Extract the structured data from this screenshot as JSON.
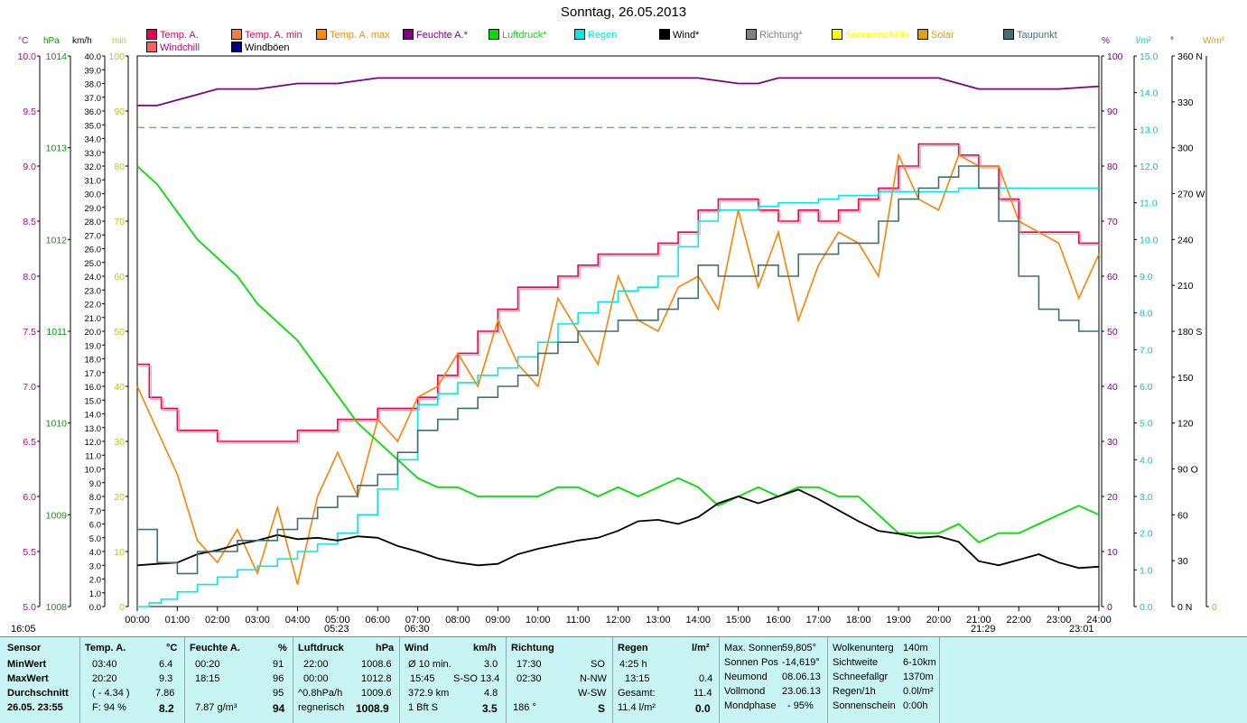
{
  "chart_data": {
    "type": "line",
    "title": "Sonntag, 26.05.2013",
    "legend": [
      {
        "name": "Temp. A.",
        "color": "#e8005a"
      },
      {
        "name": "Temp. A. min",
        "color": "#f47c3c"
      },
      {
        "name": "Temp. A. max",
        "color": "#ff8c00"
      },
      {
        "name": "Feuchte A.*",
        "color": "#800080"
      },
      {
        "name": "Luftdruck*",
        "color": "#00e000"
      },
      {
        "name": "Regen",
        "color": "#00e8e8"
      },
      {
        "name": "Wind*",
        "color": "#000000"
      },
      {
        "name": "Richtung*",
        "color": "#808080"
      },
      {
        "name": "Sonnenschein",
        "color": "#ffff00"
      },
      {
        "name": "Solar",
        "color": "#e0a000"
      },
      {
        "name": "Taupunkt",
        "color": "#407070"
      },
      {
        "name": "Windchill",
        "color": "#ff6060"
      },
      {
        "name": "Windböen",
        "color": "#000080"
      }
    ],
    "left_axes": [
      {
        "unit": "°C",
        "color": "#c00080",
        "min": 5.0,
        "max": 10.0,
        "ticks": [
          "5.0",
          "5.5",
          "6.0",
          "6.5",
          "7.0",
          "7.5",
          "8.0",
          "8.5",
          "9.0",
          "9.5",
          "10.0"
        ]
      },
      {
        "unit": "hPa",
        "color": "#00a000",
        "min": 1008,
        "max": 1014,
        "ticks": [
          "1008",
          "1009",
          "1010",
          "1011",
          "1012",
          "1013",
          "1014"
        ]
      },
      {
        "unit": "km/h",
        "color": "#000000",
        "min": 0,
        "max": 40,
        "ticks": [
          "0.0",
          "1.0",
          "2.0",
          "3.0",
          "4.0",
          "5.0",
          "6.0",
          "7.0",
          "8.0",
          "9.0",
          "10.0",
          "11.0",
          "12.0",
          "13.0",
          "14.0",
          "15.0",
          "16.0",
          "17.0",
          "18.0",
          "19.0",
          "20.0",
          "21.0",
          "22.0",
          "23.0",
          "24.0",
          "25.0",
          "26.0",
          "27.0",
          "28.0",
          "29.0",
          "30.0",
          "31.0",
          "32.0",
          "33.0",
          "34.0",
          "35.0",
          "36.0",
          "37.0",
          "38.0",
          "39.0",
          "40.0"
        ]
      },
      {
        "unit": "min",
        "color": "#c8c800",
        "min": 0,
        "max": 100,
        "ticks": [
          "0",
          "10",
          "20",
          "30",
          "40",
          "50",
          "60",
          "70",
          "80",
          "90",
          "100"
        ]
      }
    ],
    "right_axes": [
      {
        "unit": "%",
        "color": "#800080",
        "ticks": [
          "0",
          "10",
          "20",
          "30",
          "40",
          "50",
          "60",
          "70",
          "80",
          "90",
          "100"
        ]
      },
      {
        "unit": "l/m²",
        "color": "#00c8c8",
        "ticks": [
          "0.0",
          "1.0",
          "2.0",
          "3.0",
          "4.0",
          "5.0",
          "6.0",
          "7.0",
          "8.0",
          "9.0",
          "10.0",
          "11.0",
          "12.0",
          "13.0",
          "14.0",
          "15.0"
        ]
      },
      {
        "unit": "°",
        "color": "#000000",
        "ticks": [
          "0 N",
          "30",
          "60",
          "90 O",
          "120",
          "150",
          "180 S",
          "210",
          "240",
          "270 W",
          "300",
          "330",
          "360 N"
        ]
      },
      {
        "unit": "W/m²",
        "color": "#e0a000",
        "ticks": [
          "0"
        ]
      }
    ],
    "x_ticks": [
      "00:00",
      "01:00",
      "02:00",
      "03:00",
      "04:00",
      "05:00",
      "06:00",
      "07:00",
      "08:00",
      "09:00",
      "10:00",
      "11:00",
      "12:00",
      "13:00",
      "14:00",
      "15:00",
      "16:00",
      "17:00",
      "18:00",
      "19:00",
      "20:00",
      "21:00",
      "22:00",
      "23:00",
      "24:00"
    ],
    "time_markers": [
      "16:05",
      "05:23",
      "06:30",
      "21:29",
      "23:01"
    ],
    "series": [
      {
        "key": "temp",
        "axis": "°C",
        "hours": [
          0,
          0.3,
          0.6,
          1,
          1.5,
          2,
          2.5,
          3,
          3.5,
          4,
          4.5,
          5,
          5.5,
          6,
          6.5,
          7,
          7.5,
          8,
          8.5,
          9,
          9.5,
          10,
          10.5,
          11,
          11.5,
          12,
          12.5,
          13,
          13.5,
          14,
          14.5,
          15,
          15.5,
          16,
          16.5,
          17,
          17.5,
          18,
          18.5,
          19,
          19.5,
          20,
          20.5,
          21,
          21.5,
          22,
          22.5,
          23,
          23.5,
          24
        ],
        "values": [
          7.2,
          6.9,
          6.8,
          6.6,
          6.6,
          6.5,
          6.5,
          6.5,
          6.5,
          6.6,
          6.6,
          6.7,
          6.7,
          6.8,
          6.8,
          6.9,
          7.1,
          7.3,
          7.5,
          7.7,
          7.9,
          7.9,
          8.0,
          8.1,
          8.2,
          8.2,
          8.2,
          8.3,
          8.4,
          8.6,
          8.7,
          8.7,
          8.6,
          8.5,
          8.6,
          8.5,
          8.6,
          8.7,
          8.8,
          9.0,
          9.2,
          9.2,
          9.1,
          9.0,
          8.7,
          8.4,
          8.4,
          8.4,
          8.3,
          8.3
        ]
      },
      {
        "key": "tmin",
        "axis": "°C",
        "hours": [
          0,
          0.5,
          1,
          1.5,
          2,
          2.5,
          3,
          3.5,
          4,
          4.5,
          5,
          5.5,
          6,
          6.5,
          7,
          7.5,
          8,
          8.5,
          9,
          9.5,
          10,
          10.5,
          11,
          11.5,
          12,
          12.5,
          13,
          13.5,
          14,
          14.5,
          15,
          15.5,
          16,
          16.5,
          17,
          17.5,
          18,
          18.5,
          19,
          19.5,
          20,
          20.5,
          21,
          21.5,
          22,
          22.5,
          23,
          23.5,
          24
        ],
        "values": [
          7.0,
          6.6,
          6.2,
          5.6,
          5.4,
          5.7,
          5.3,
          5.9,
          5.2,
          6.0,
          6.4,
          6.0,
          6.7,
          6.5,
          6.9,
          7.0,
          7.3,
          7.0,
          7.6,
          7.2,
          7.0,
          7.8,
          7.5,
          7.2,
          8.0,
          7.6,
          7.5,
          7.9,
          8.0,
          7.7,
          8.6,
          7.9,
          8.4,
          7.6,
          8.1,
          8.4,
          8.3,
          8.0,
          9.1,
          8.7,
          8.6,
          9.1,
          9.0,
          9.0,
          8.5,
          8.4,
          8.3,
          7.8,
          8.2
        ]
      },
      {
        "key": "humid",
        "axis": "%",
        "hours": [
          0,
          0.5,
          1,
          1.5,
          2,
          3,
          4,
          5,
          6,
          7,
          8,
          9,
          10,
          11,
          12,
          13,
          14,
          15,
          15.5,
          16,
          17,
          18,
          19,
          20,
          20.5,
          21,
          22,
          23,
          24
        ],
        "values": [
          91,
          91,
          92,
          93,
          94,
          94,
          95,
          95,
          96,
          96,
          96,
          96,
          96,
          96,
          96,
          96,
          96,
          95,
          95,
          96,
          96,
          96,
          96,
          96,
          95,
          94,
          94,
          94,
          94.5
        ]
      },
      {
        "key": "press",
        "axis": "hPa",
        "hours": [
          0,
          0.5,
          1,
          1.5,
          2,
          2.5,
          3,
          3.5,
          4,
          4.5,
          5,
          5.5,
          6,
          6.5,
          7,
          7.5,
          8,
          8.5,
          9,
          9.5,
          10,
          10.5,
          11,
          11.5,
          12,
          12.5,
          13,
          13.5,
          14,
          14.5,
          15,
          15.5,
          16,
          16.5,
          17,
          17.5,
          18,
          18.5,
          19,
          19.5,
          20,
          20.5,
          21,
          21.5,
          22,
          22.5,
          23,
          23.5,
          24
        ],
        "values": [
          1012.8,
          1012.6,
          1012.3,
          1012.0,
          1011.8,
          1011.6,
          1011.3,
          1011.1,
          1010.9,
          1010.6,
          1010.3,
          1010.0,
          1009.8,
          1009.6,
          1009.4,
          1009.3,
          1009.3,
          1009.2,
          1009.2,
          1009.2,
          1009.2,
          1009.3,
          1009.3,
          1009.2,
          1009.3,
          1009.2,
          1009.3,
          1009.4,
          1009.3,
          1009.1,
          1009.2,
          1009.3,
          1009.2,
          1009.3,
          1009.3,
          1009.2,
          1009.2,
          1009.0,
          1008.8,
          1008.8,
          1008.8,
          1008.9,
          1008.7,
          1008.8,
          1008.8,
          1008.9,
          1009.0,
          1009.1,
          1009.0
        ]
      },
      {
        "key": "rain",
        "axis": "l/m²",
        "hours": [
          0,
          0.3,
          0.6,
          1,
          1.5,
          2,
          2.5,
          3,
          3.5,
          4,
          4.5,
          5,
          5.5,
          6,
          6.5,
          7,
          7.5,
          8,
          8.5,
          9,
          9.5,
          10,
          10.5,
          11,
          11.5,
          12,
          12.5,
          13,
          13.5,
          14,
          14.5,
          15,
          15.5,
          16,
          16.5,
          17,
          17.5,
          18,
          18.5,
          19,
          19.5,
          20,
          20.5,
          21,
          21.5,
          22,
          22.5,
          23,
          23.5,
          24
        ],
        "values": [
          0,
          0.1,
          0.2,
          0.4,
          0.6,
          0.8,
          1.0,
          1.1,
          1.3,
          1.5,
          1.7,
          2.0,
          2.5,
          3.2,
          4.0,
          5.5,
          5.8,
          6.1,
          6.3,
          6.5,
          6.8,
          7.2,
          7.7,
          8.0,
          8.3,
          8.6,
          8.7,
          9.0,
          9.8,
          10.5,
          10.8,
          10.8,
          10.9,
          11.0,
          11.0,
          11.1,
          11.2,
          11.2,
          11.3,
          11.3,
          11.3,
          11.3,
          11.4,
          11.4,
          11.4,
          11.4,
          11.4,
          11.4,
          11.4,
          11.4
        ]
      },
      {
        "key": "wind",
        "axis": "km/h",
        "hours": [
          0,
          0.5,
          1,
          1.5,
          2,
          2.5,
          3,
          3.5,
          4,
          4.5,
          5,
          5.5,
          6,
          6.5,
          7,
          7.5,
          8,
          8.5,
          9,
          9.5,
          10,
          10.5,
          11,
          11.5,
          12,
          12.5,
          13,
          13.5,
          14,
          14.5,
          15,
          15.5,
          16,
          16.5,
          17,
          17.5,
          18,
          18.5,
          19,
          19.5,
          20,
          20.5,
          21,
          21.5,
          22,
          22.5,
          23,
          23.5,
          24
        ],
        "values": [
          3.0,
          3.1,
          3.2,
          3.8,
          4.1,
          4.5,
          4.8,
          5.2,
          4.9,
          5.0,
          4.8,
          5.1,
          5.0,
          4.4,
          4.0,
          3.5,
          3.2,
          3.0,
          3.1,
          3.8,
          4.2,
          4.5,
          4.8,
          5.0,
          5.5,
          6.2,
          6.3,
          6.0,
          6.5,
          7.5,
          8.0,
          7.5,
          8.0,
          8.5,
          7.8,
          7.0,
          6.2,
          5.5,
          5.3,
          5.0,
          5.1,
          4.7,
          3.3,
          3.0,
          3.4,
          3.8,
          3.2,
          2.8,
          2.9
        ]
      },
      {
        "key": "dew",
        "axis": "°C",
        "hours": [
          0,
          0.5,
          1,
          1.5,
          2,
          2.5,
          3,
          3.5,
          4,
          4.5,
          5,
          5.5,
          6,
          6.5,
          7,
          7.5,
          8,
          8.5,
          9,
          9.5,
          10,
          10.5,
          11,
          11.5,
          12,
          12.5,
          13,
          13.5,
          14,
          14.5,
          15,
          15.5,
          16,
          16.5,
          17,
          17.5,
          18,
          18.5,
          19,
          19.5,
          20,
          20.5,
          21,
          21.5,
          22,
          22.5,
          23,
          23.5,
          24
        ],
        "values": [
          5.7,
          5.4,
          5.3,
          5.5,
          5.5,
          5.6,
          5.6,
          5.7,
          5.8,
          5.9,
          6.0,
          6.1,
          6.2,
          6.4,
          6.6,
          6.7,
          6.8,
          6.9,
          7.0,
          7.1,
          7.3,
          7.4,
          7.5,
          7.5,
          7.6,
          7.6,
          7.7,
          7.8,
          8.1,
          8.0,
          8.0,
          8.1,
          8.0,
          8.2,
          8.2,
          8.3,
          8.3,
          8.5,
          8.7,
          8.8,
          8.9,
          9.0,
          8.8,
          8.5,
          8.0,
          7.7,
          7.6,
          7.5,
          7.5
        ]
      }
    ]
  },
  "stats": {
    "sensor": {
      "header": "Sensor",
      "rows": [
        "MinWert",
        "MaxWert",
        "Durchschnitt",
        "26.05. 23:55"
      ]
    },
    "temp": {
      "header": "Temp. A.",
      "unit": "°C",
      "rows": [
        [
          "03:40",
          "6.4"
        ],
        [
          "20:20",
          "9.3"
        ],
        [
          "( - 4.34 )",
          "7.86"
        ],
        [
          "F: 94 %",
          "8.2"
        ]
      ]
    },
    "feuchte": {
      "header": "Feuchte A.",
      "unit": "%",
      "rows": [
        [
          "00:20",
          "91"
        ],
        [
          "18:15",
          "96"
        ],
        [
          "",
          "95"
        ],
        [
          "7.87 g/m³",
          "94"
        ]
      ]
    },
    "luftdruck": {
      "header": "Luftdruck",
      "unit": "hPa",
      "rows": [
        [
          "22:00",
          "1008.6"
        ],
        [
          "00:00",
          "1012.8"
        ],
        [
          "^0.8hPa/h",
          "1009.6"
        ],
        [
          "regnerisch",
          "1008.9"
        ]
      ]
    },
    "wind": {
      "header": "Wind",
      "unit": "km/h",
      "rows": [
        [
          "Ø 10 min.",
          "",
          "3.0"
        ],
        [
          "15:45",
          "S-SO",
          "13.4"
        ],
        [
          "372.9 km",
          "",
          "4.8"
        ],
        [
          "1 Bft S",
          "",
          "3.5"
        ]
      ]
    },
    "richtung": {
      "header": "Richtung",
      "rows": [
        [
          "17:30",
          "SO"
        ],
        [
          "02:30",
          "N-NW"
        ],
        [
          "",
          "W-SW"
        ],
        [
          "186 °",
          "S"
        ]
      ]
    },
    "regen": {
      "header": "Regen",
      "unit": "l/m²",
      "rows": [
        [
          "4:25 h",
          ""
        ],
        [
          "13:15",
          "0.4"
        ],
        [
          "Gesamt:",
          "11.4"
        ],
        [
          "11.4 l/m²",
          "0.0"
        ]
      ]
    },
    "astro": {
      "rows": [
        [
          "Max. Sonnen",
          "59,805°"
        ],
        [
          "Sonnen Pos",
          "-14,619°"
        ],
        [
          "Neumond",
          "08.06.13"
        ],
        [
          "Vollmond",
          "23.06.13"
        ],
        [
          "Mondphase",
          "- 95%"
        ]
      ]
    },
    "extra": {
      "rows": [
        [
          "Wolkenunterg",
          "140m"
        ],
        [
          "Sichtweite",
          "6-10km"
        ],
        [
          "Schneefallgr",
          "1370m"
        ],
        [
          "Regen/1h",
          "0.0l/m²"
        ],
        [
          "Sonnenschein",
          "0:00h"
        ]
      ]
    }
  }
}
